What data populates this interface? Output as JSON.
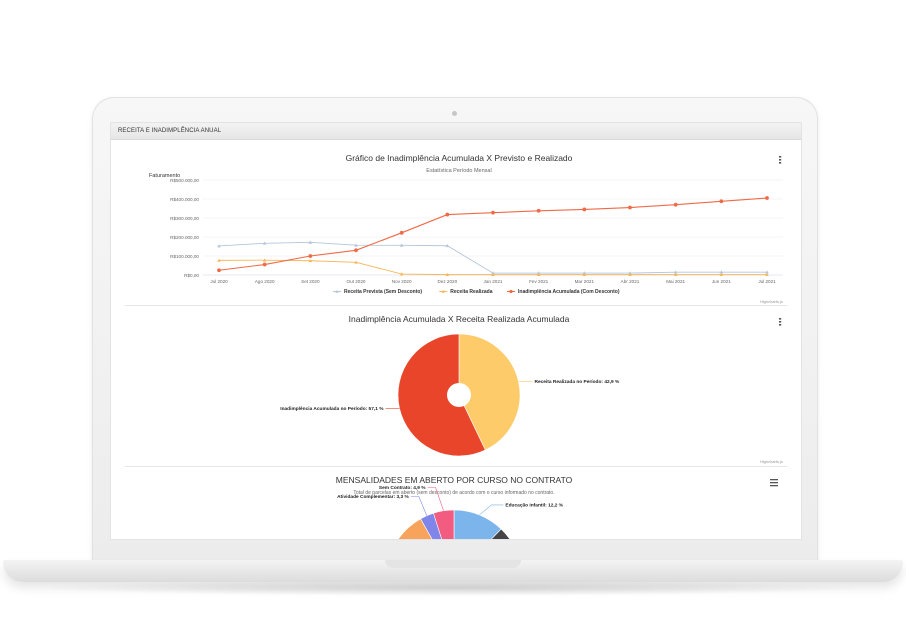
{
  "panel": {
    "title": "RECEITA E INADIMPLÊNCIA ANUAL"
  },
  "chart_data": [
    {
      "type": "line",
      "title": "Gráfico de Inadimplência Acumulada X Previsto e Realizado",
      "subtitle": "Estatística Período Mensal",
      "ylabel": "Faturamento",
      "credits": "Highcharts.js",
      "categories": [
        "Jul 2020",
        "Ago 2020",
        "Set 2020",
        "Out 2020",
        "Nov 2020",
        "Dez 2020",
        "Jan 2021",
        "Fev 2021",
        "Mar 2021",
        "Abr 2021",
        "Mai 2021",
        "Jun 2021",
        "Jul 2021"
      ],
      "y_ticks": [
        0,
        100000,
        200000,
        300000,
        400000,
        500000
      ],
      "y_tick_labels": [
        "R$0,00",
        "R$100.000,00",
        "R$200.000,00",
        "R$300.000,00",
        "R$400.000,00",
        "R$500.000,00"
      ],
      "ylim": [
        0,
        500000
      ],
      "grid": true,
      "legend_position": "bottom-center",
      "series": [
        {
          "name": "Receita Prevista (Sem Desconto)",
          "color": "#b3c6dc",
          "marker": "triangle",
          "values": [
            153000,
            167000,
            172000,
            157000,
            156000,
            154000,
            10000,
            10000,
            10000,
            10000,
            15000,
            15000,
            15000
          ]
        },
        {
          "name": "Receita Realizada",
          "color": "#f7b65a",
          "marker": "triangle",
          "values": [
            77000,
            78000,
            75000,
            67000,
            5000,
            2000,
            2000,
            2000,
            2000,
            2000,
            2000,
            2000,
            2000
          ]
        },
        {
          "name": "Inadimplência Acumulada (Com Desconto)",
          "color": "#f06a47",
          "marker": "circle",
          "values": [
            25000,
            55000,
            100000,
            130000,
            222000,
            318000,
            328000,
            338000,
            345000,
            355000,
            370000,
            388000,
            405000
          ]
        }
      ]
    },
    {
      "type": "pie",
      "title": "Inadimplência Acumulada X Receita Realizada Acumulada",
      "credits": "Highcharts.js",
      "slices": [
        {
          "name": "Receita Realizada no Período",
          "value": 42.9,
          "label": "Receita Realizada no Período: 42,9 %",
          "color": "#fecb6b"
        },
        {
          "name": "Inadimplência Acumulada no Período",
          "value": 57.1,
          "label": "Inadimplência Acumulada no Período: 57,1 %",
          "color": "#e9452b"
        }
      ]
    },
    {
      "type": "pie",
      "title": "MENSALIDADES EM ABERTO POR CURSO NO CONTRATO",
      "subtitle": "Total de parcelas em aberto (sem desconto) de acordo com o curso informado no contrato.",
      "slices": [
        {
          "name": "Educação Infantil",
          "value": 12.2,
          "label": "Educação infantil: 12,2 %",
          "color": "#7cb5ec"
        },
        {
          "name": "Sem Contrato",
          "value": 4.9,
          "label": "Sem Contrato: 4,9 %",
          "color": "#f15c80"
        },
        {
          "name": "Atividade Complementar",
          "value": 3.3,
          "label": "Atividade Complementar: 3,3 %",
          "color": "#8085e9"
        }
      ]
    }
  ]
}
